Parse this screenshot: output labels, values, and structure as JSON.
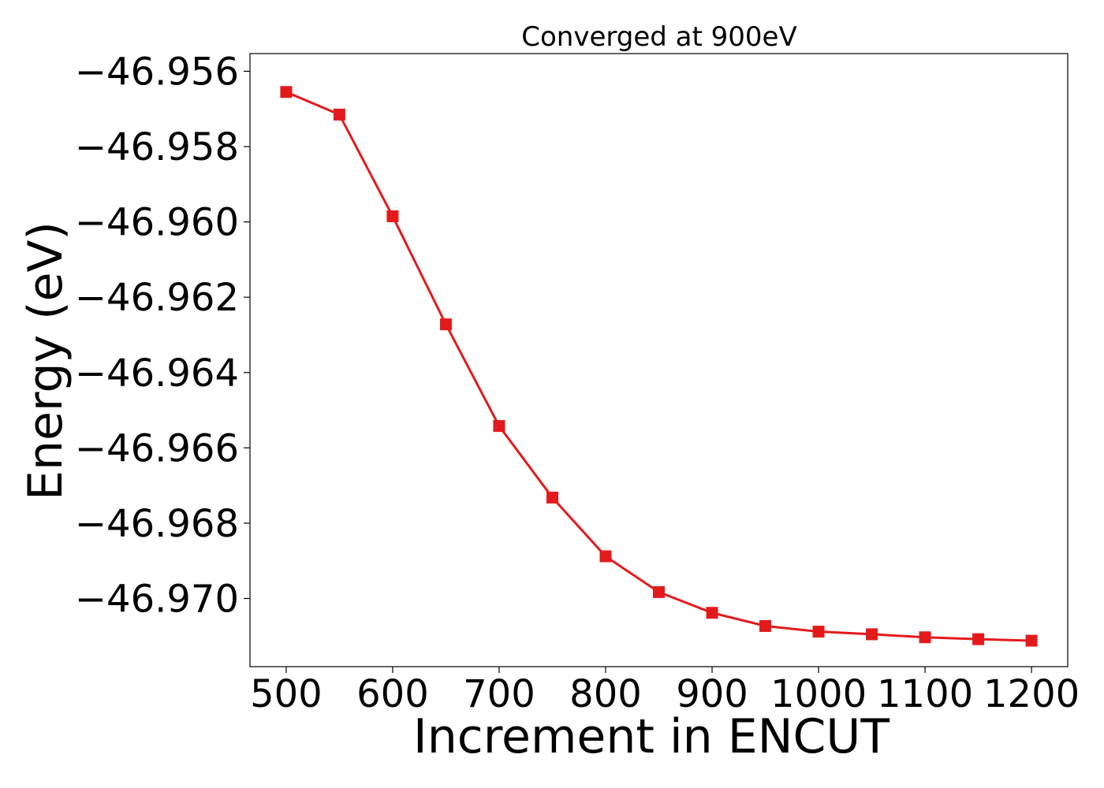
{
  "chart_data": {
    "type": "line",
    "title": "Converged at 900eV",
    "xlabel": "Increment in ENCUT",
    "ylabel": "Energy (eV)",
    "x": [
      500,
      550,
      600,
      650,
      700,
      750,
      800,
      850,
      900,
      950,
      1000,
      1050,
      1100,
      1150,
      1200
    ],
    "series": [
      {
        "values": [
          -46.95655,
          -46.95715,
          -46.95985,
          -46.96272,
          -46.96542,
          -46.96732,
          -46.96888,
          -46.96983,
          -46.97038,
          -46.97073,
          -46.97088,
          -46.97095,
          -46.97103,
          -46.97108,
          -46.97112
        ]
      }
    ],
    "xlim": [
      466,
      1234
    ],
    "ylim": [
      -46.97181,
      -46.95553
    ],
    "xticks": [
      500,
      600,
      700,
      800,
      900,
      1000,
      1100,
      1200
    ],
    "xtick_labels": [
      "500",
      "600",
      "700",
      "800",
      "900",
      "1000",
      "1100",
      "1200"
    ],
    "yticks": [
      -46.956,
      -46.958,
      -46.96,
      -46.962,
      -46.964,
      -46.966,
      -46.968,
      -46.97
    ],
    "ytick_labels": [
      "−46.956",
      "−46.958",
      "−46.960",
      "−46.962",
      "−46.964",
      "−46.966",
      "−46.968",
      "−46.970"
    ],
    "grid": false,
    "marker": "square",
    "colors": {
      "line": "#e31a1c",
      "axes": "#000000"
    }
  }
}
